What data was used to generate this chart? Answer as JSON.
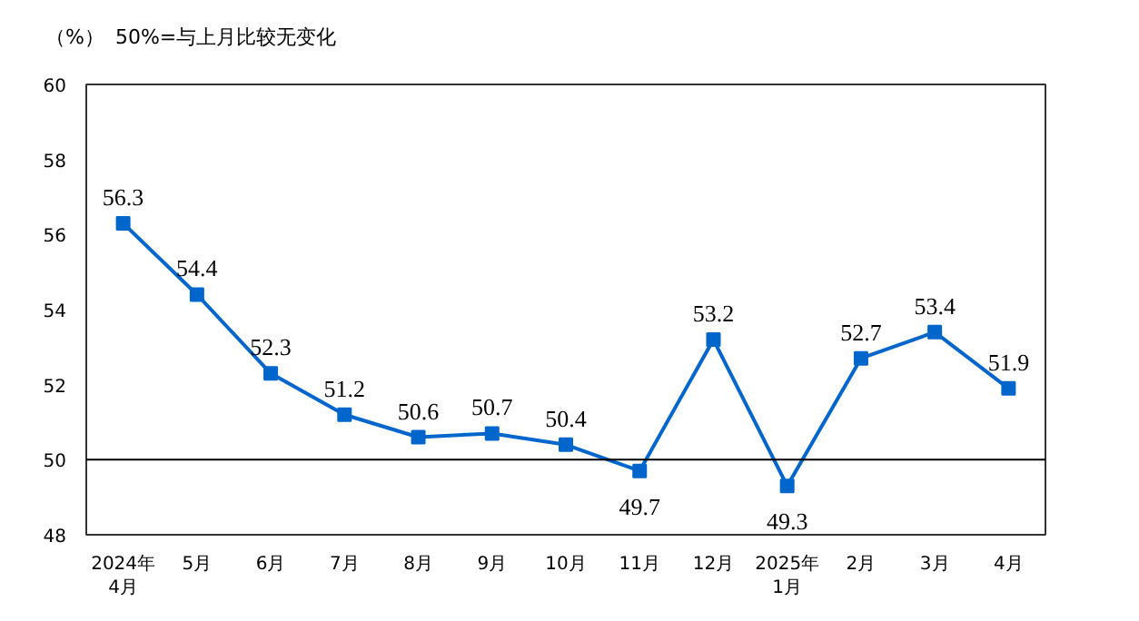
{
  "chart_data": {
    "type": "line",
    "ylabel": "（%）",
    "annotations": [
      "50%=与上月比较无变化"
    ],
    "categories": [
      "2024年\n4月",
      "5月",
      "6月",
      "7月",
      "8月",
      "9月",
      "10月",
      "11月",
      "12月",
      "2025年\n1月",
      "2月",
      "3月",
      "4月"
    ],
    "series": [
      {
        "color": "#0066cc",
        "values": [
          56.3,
          54.4,
          52.3,
          51.2,
          50.6,
          50.7,
          50.4,
          49.7,
          53.2,
          49.3,
          52.7,
          53.4,
          51.9
        ]
      }
    ],
    "ylim": [
      48,
      60
    ],
    "yticks": [
      48,
      50,
      52,
      54,
      56,
      58,
      60
    ],
    "ref_lines": [
      {
        "axis": "y",
        "value": 50,
        "color": "#000000"
      }
    ],
    "marker": "square",
    "data_labels": true,
    "grid": false
  }
}
